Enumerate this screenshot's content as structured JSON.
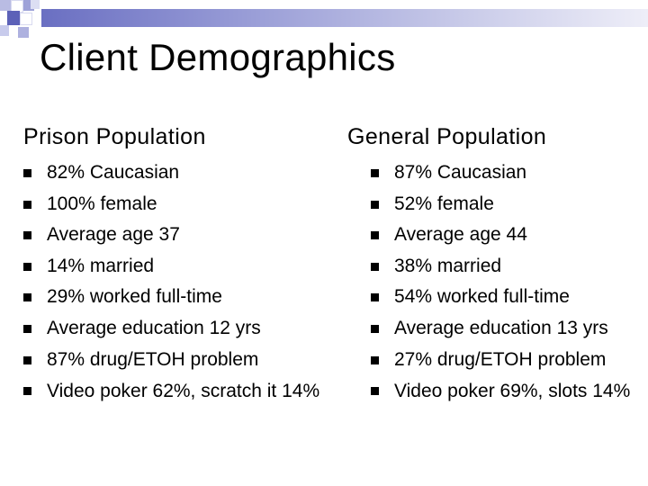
{
  "title": "Client Demographics",
  "colors": {
    "accent": "#6a6fc2",
    "bar_light": "#eeeef8"
  },
  "left": {
    "heading": "Prison Population",
    "items": [
      "82% Caucasian",
      "100% female",
      "Average age 37",
      "14% married",
      "29% worked full-time",
      "Average education 12 yrs",
      "87% drug/ETOH problem",
      "Video poker 62%, scratch it 14%"
    ]
  },
  "right": {
    "heading": "General Population",
    "items": [
      "87% Caucasian",
      "52% female",
      "Average age 44",
      "38% married",
      "54% worked full-time",
      "Average education 13 yrs",
      "27%  drug/ETOH problem",
      "Video poker 69%, slots 14%"
    ]
  }
}
